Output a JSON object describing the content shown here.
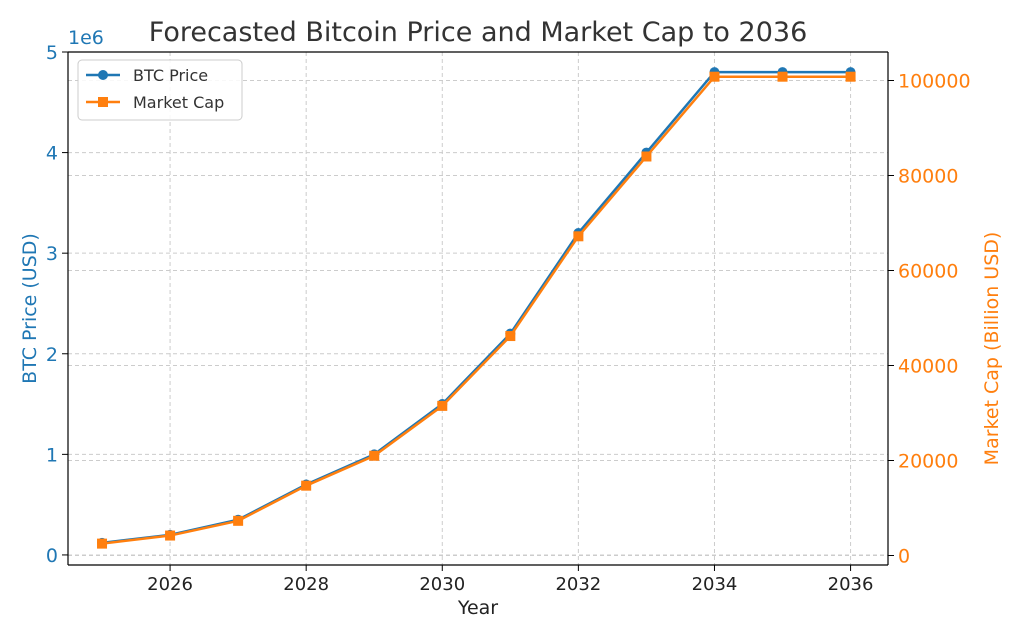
{
  "chart_data": {
    "type": "line",
    "title": "Forecasted Bitcoin Price and Market Cap to 2036",
    "xlabel": "Year",
    "ylabel_left": "BTC Price (USD)",
    "ylabel_right": "Market Cap (Billion USD)",
    "left_axis_offset_label": "1e6",
    "x": [
      2025,
      2026,
      2027,
      2028,
      2029,
      2030,
      2031,
      2032,
      2033,
      2034,
      2035,
      2036
    ],
    "xlim": [
      2024.5,
      2036.55
    ],
    "ylim_left": [
      -100000,
      5000000
    ],
    "ylim_right": [
      -2000,
      106000
    ],
    "x_ticks": [
      2026,
      2028,
      2030,
      2032,
      2034,
      2036
    ],
    "y_left_ticks": [
      0,
      1000000,
      2000000,
      3000000,
      4000000,
      5000000
    ],
    "y_left_tick_labels": [
      "0",
      "1",
      "2",
      "3",
      "4",
      "5"
    ],
    "y_right_ticks": [
      0,
      20000,
      40000,
      60000,
      80000,
      100000
    ],
    "y_right_tick_labels": [
      "0",
      "20000",
      "40000",
      "60000",
      "80000",
      "100000"
    ],
    "grid": true,
    "legend_position": "top-left",
    "series": [
      {
        "name": "BTC Price",
        "axis": "left",
        "color": "#1f77b4",
        "marker": "circle",
        "values": [
          120000,
          200000,
          350000,
          700000,
          1000000,
          1500000,
          2200000,
          3200000,
          4000000,
          4800000,
          4800000,
          4800000
        ]
      },
      {
        "name": "Market Cap",
        "axis": "right",
        "color": "#ff7f0e",
        "marker": "square",
        "values": [
          2500,
          4200,
          7300,
          14700,
          21000,
          31500,
          46200,
          67200,
          84000,
          100800,
          100800,
          100800
        ]
      }
    ],
    "colors": {
      "left_axis": "#1f77b4",
      "right_axis": "#ff7f0e",
      "title": "#333333",
      "text": "#222222"
    }
  }
}
